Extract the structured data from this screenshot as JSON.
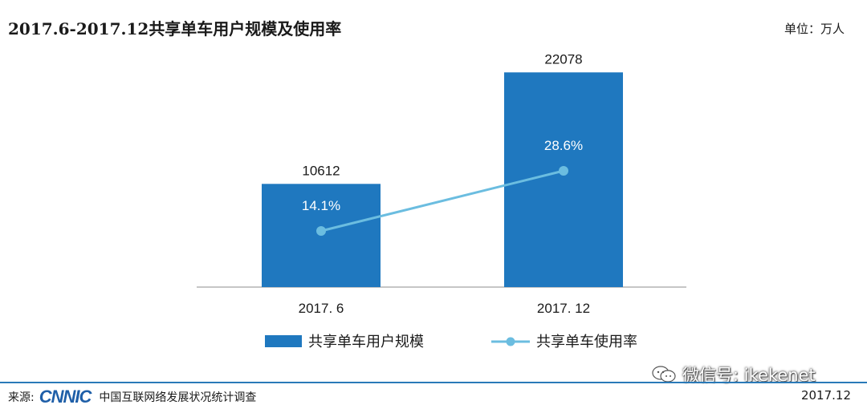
{
  "header": {
    "title": "2017.6-2017.12共享单车用户规模及使用率",
    "unit": "单位：万人"
  },
  "chart_data": {
    "type": "bar",
    "categories": [
      "2017. 6",
      "2017. 12"
    ],
    "series": [
      {
        "name": "共享单车用户规模",
        "kind": "bar",
        "values": [
          10612,
          22078
        ],
        "labels": [
          "10612",
          "22078"
        ]
      },
      {
        "name": "共享单车使用率",
        "kind": "line",
        "values": [
          14.1,
          28.6
        ],
        "labels": [
          "14.1%",
          "28.6%"
        ]
      }
    ],
    "ylim": [
      0,
      24000
    ],
    "grid": false,
    "legend": "bottom-center",
    "colors": {
      "bar": "#1f78bf",
      "line": "#6bbde0",
      "axis": "#8c8c8c"
    }
  },
  "footer": {
    "source_label": "来源:",
    "source_logo": "CNNIC",
    "source_org": "中国互联网络发展状况统计调查",
    "date": "2017.12",
    "wechat_id": "微信号: ikekenet"
  }
}
